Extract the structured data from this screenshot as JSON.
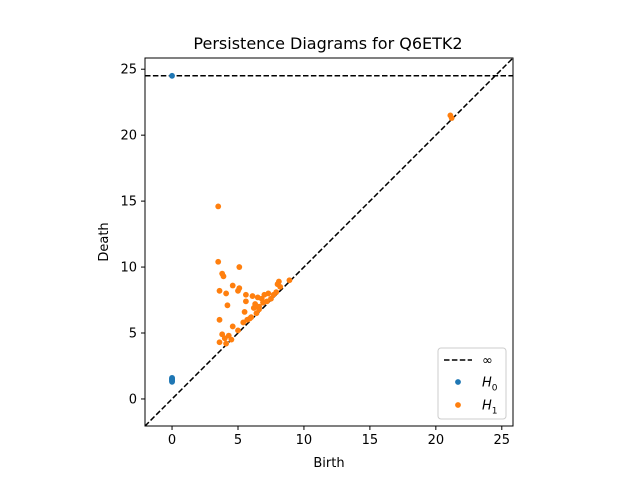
{
  "chart_data": {
    "type": "scatter",
    "title": "Persistence Diagrams for Q6ETK2",
    "xlabel": "Birth",
    "ylabel": "Death",
    "xlim": [
      -2.05,
      25.85
    ],
    "ylim": [
      -2.05,
      25.85
    ],
    "xticks": [
      0,
      5,
      10,
      15,
      20,
      25
    ],
    "yticks": [
      0,
      5,
      10,
      15,
      20,
      25
    ],
    "infinity_line": {
      "label": "∞",
      "y": 24.5,
      "color": "#000000",
      "style": "dashed"
    },
    "diagonal": {
      "color": "#000000",
      "style": "dashed"
    },
    "legend_position": "bottom-right",
    "series": [
      {
        "name": "H0",
        "label_main": "H",
        "label_sub": "0",
        "color": "#1f77b4",
        "points": [
          [
            0,
            24.5
          ],
          [
            0,
            1.6
          ],
          [
            0,
            1.55
          ],
          [
            0,
            1.5
          ],
          [
            0,
            1.45
          ],
          [
            0,
            1.4
          ],
          [
            0,
            1.35
          ],
          [
            0,
            1.3
          ]
        ]
      },
      {
        "name": "H1",
        "label_main": "H",
        "label_sub": "1",
        "color": "#ff7f0e",
        "points": [
          [
            21.1,
            21.5
          ],
          [
            21.2,
            21.3
          ],
          [
            3.5,
            14.6
          ],
          [
            3.5,
            10.4
          ],
          [
            5.1,
            10.0
          ],
          [
            3.8,
            9.5
          ],
          [
            3.9,
            9.3
          ],
          [
            8.9,
            9.0
          ],
          [
            8.1,
            8.9
          ],
          [
            8.0,
            8.7
          ],
          [
            4.6,
            8.6
          ],
          [
            3.6,
            8.2
          ],
          [
            4.1,
            8.0
          ],
          [
            5.0,
            8.2
          ],
          [
            5.1,
            8.4
          ],
          [
            5.6,
            7.9
          ],
          [
            6.1,
            7.8
          ],
          [
            6.5,
            7.7
          ],
          [
            7.0,
            7.9
          ],
          [
            7.3,
            8.0
          ],
          [
            7.7,
            7.9
          ],
          [
            7.5,
            7.6
          ],
          [
            6.9,
            7.3
          ],
          [
            5.6,
            7.4
          ],
          [
            6.8,
            7.6
          ],
          [
            6.3,
            7.2
          ],
          [
            6.6,
            7.0
          ],
          [
            4.2,
            7.1
          ],
          [
            7.2,
            7.4
          ],
          [
            7.9,
            8.1
          ],
          [
            8.2,
            8.5
          ],
          [
            6.2,
            6.9
          ],
          [
            5.5,
            6.6
          ],
          [
            6.4,
            6.5
          ],
          [
            6.0,
            6.2
          ],
          [
            5.7,
            6.0
          ],
          [
            5.4,
            5.8
          ],
          [
            3.6,
            6.0
          ],
          [
            4.6,
            5.5
          ],
          [
            5.0,
            5.2
          ],
          [
            3.8,
            4.9
          ],
          [
            4.0,
            4.6
          ],
          [
            4.3,
            4.8
          ],
          [
            3.6,
            4.3
          ],
          [
            4.1,
            4.2
          ],
          [
            4.5,
            4.5
          ],
          [
            5.9,
            6.1
          ],
          [
            6.6,
            6.8
          ]
        ]
      }
    ]
  }
}
